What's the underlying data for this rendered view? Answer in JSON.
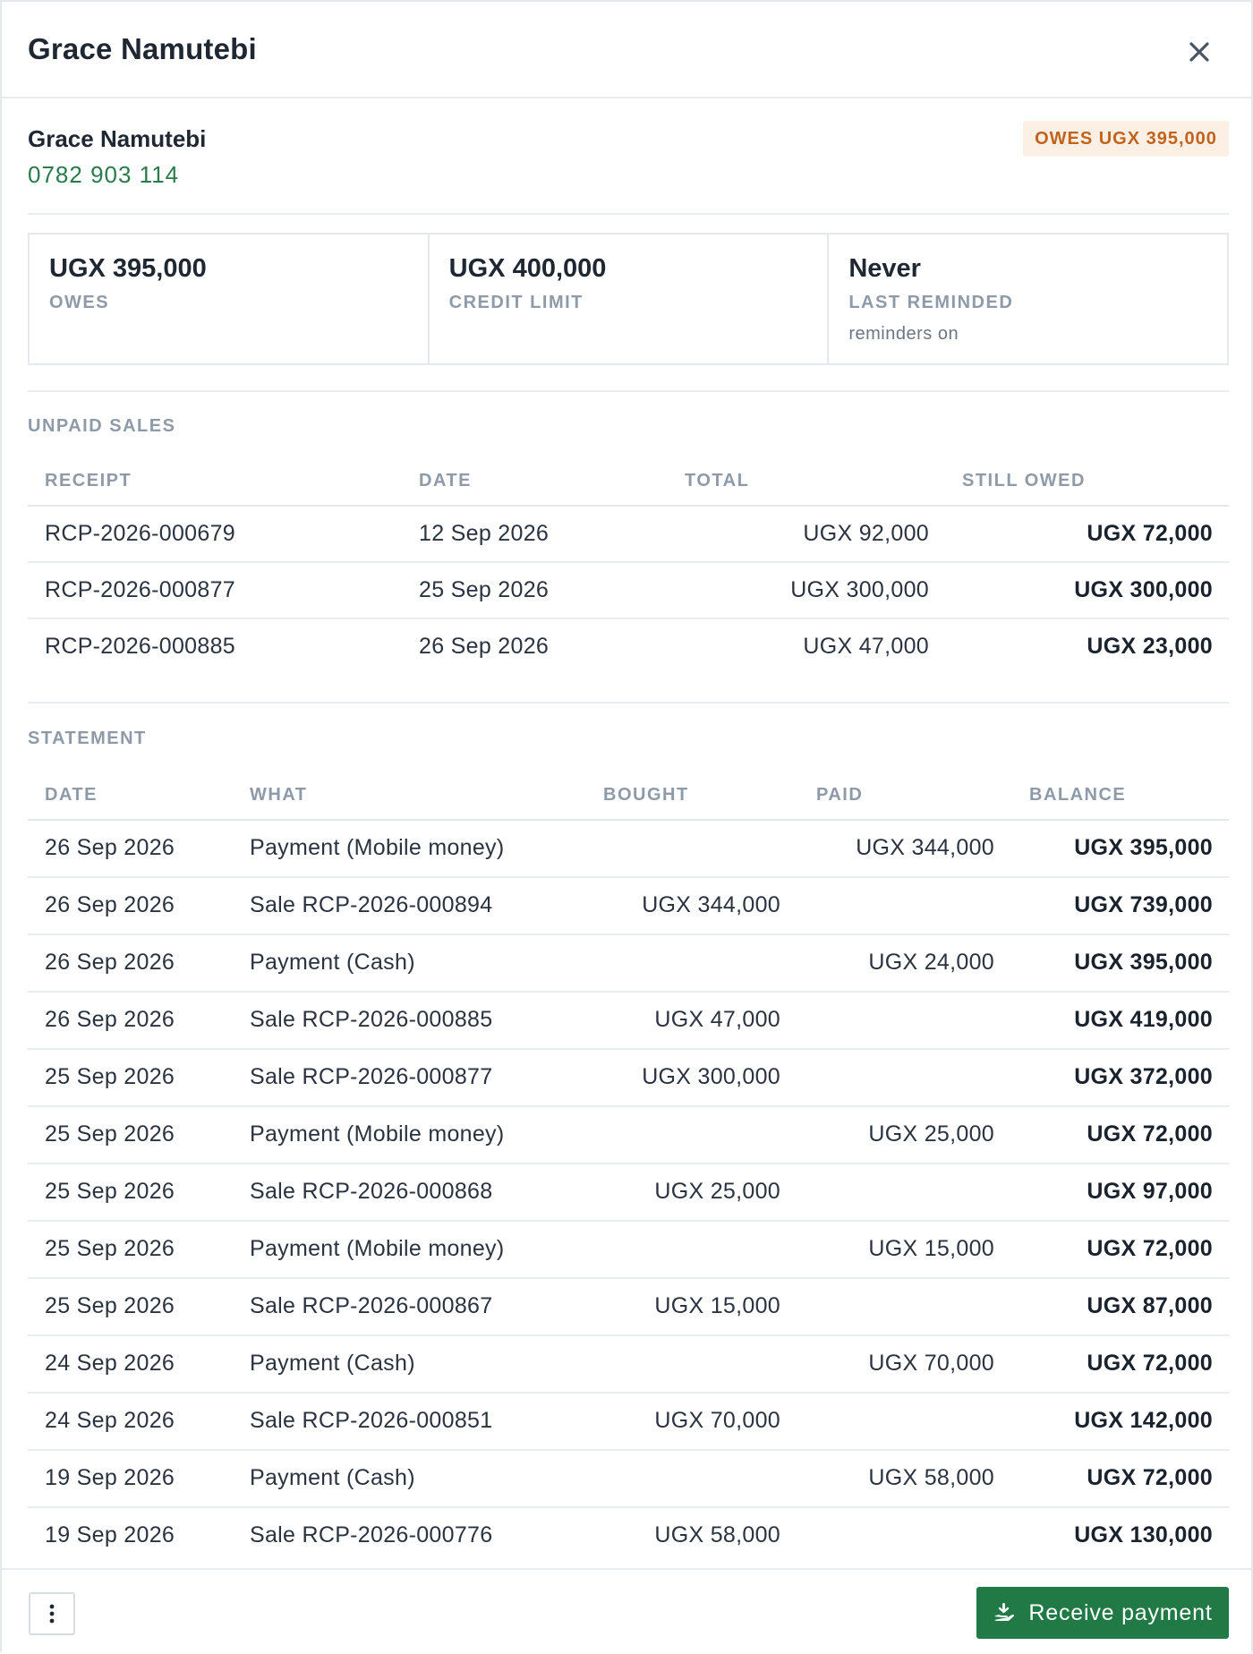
{
  "header": {
    "title": "Grace Namutebi",
    "close_icon": "close-icon"
  },
  "customer": {
    "name": "Grace Namutebi",
    "phone": "0782 903 114",
    "badge": "OWES UGX 395,000",
    "badge_color": "#c1631c"
  },
  "stats": [
    {
      "value": "UGX 395,000",
      "label": "OWES",
      "sub": ""
    },
    {
      "value": "UGX 400,000",
      "label": "CREDIT LIMIT",
      "sub": ""
    },
    {
      "value": "Never",
      "label": "LAST REMINDED",
      "sub": "reminders on"
    }
  ],
  "unpaid": {
    "title": "UNPAID SALES",
    "columns": [
      "RECEIPT",
      "DATE",
      "TOTAL",
      "STILL OWED"
    ],
    "rows": [
      {
        "receipt": "RCP-2026-000679",
        "date": "12 Sep 2026",
        "total": "UGX 92,000",
        "owed": "UGX 72,000"
      },
      {
        "receipt": "RCP-2026-000877",
        "date": "25 Sep 2026",
        "total": "UGX 300,000",
        "owed": "UGX 300,000"
      },
      {
        "receipt": "RCP-2026-000885",
        "date": "26 Sep 2026",
        "total": "UGX 47,000",
        "owed": "UGX 23,000"
      }
    ]
  },
  "statement": {
    "title": "STATEMENT",
    "columns": [
      "DATE",
      "WHAT",
      "BOUGHT",
      "PAID",
      "BALANCE"
    ],
    "rows": [
      {
        "date": "26 Sep 2026",
        "what": "Payment (Mobile money)",
        "bought": "",
        "paid": "UGX 344,000",
        "balance": "UGX 395,000"
      },
      {
        "date": "26 Sep 2026",
        "what": "Sale RCP-2026-000894",
        "bought": "UGX 344,000",
        "paid": "",
        "balance": "UGX 739,000"
      },
      {
        "date": "26 Sep 2026",
        "what": "Payment (Cash)",
        "bought": "",
        "paid": "UGX 24,000",
        "balance": "UGX 395,000"
      },
      {
        "date": "26 Sep 2026",
        "what": "Sale RCP-2026-000885",
        "bought": "UGX 47,000",
        "paid": "",
        "balance": "UGX 419,000"
      },
      {
        "date": "25 Sep 2026",
        "what": "Sale RCP-2026-000877",
        "bought": "UGX 300,000",
        "paid": "",
        "balance": "UGX 372,000"
      },
      {
        "date": "25 Sep 2026",
        "what": "Payment (Mobile money)",
        "bought": "",
        "paid": "UGX 25,000",
        "balance": "UGX 72,000"
      },
      {
        "date": "25 Sep 2026",
        "what": "Sale RCP-2026-000868",
        "bought": "UGX 25,000",
        "paid": "",
        "balance": "UGX 97,000"
      },
      {
        "date": "25 Sep 2026",
        "what": "Payment (Mobile money)",
        "bought": "",
        "paid": "UGX 15,000",
        "balance": "UGX 72,000"
      },
      {
        "date": "25 Sep 2026",
        "what": "Sale RCP-2026-000867",
        "bought": "UGX 15,000",
        "paid": "",
        "balance": "UGX 87,000"
      },
      {
        "date": "24 Sep 2026",
        "what": "Payment (Cash)",
        "bought": "",
        "paid": "UGX 70,000",
        "balance": "UGX 72,000"
      },
      {
        "date": "24 Sep 2026",
        "what": "Sale RCP-2026-000851",
        "bought": "UGX 70,000",
        "paid": "",
        "balance": "UGX 142,000"
      },
      {
        "date": "19 Sep 2026",
        "what": "Payment (Cash)",
        "bought": "",
        "paid": "UGX 58,000",
        "balance": "UGX 72,000"
      },
      {
        "date": "19 Sep 2026",
        "what": "Sale RCP-2026-000776",
        "bought": "UGX 58,000",
        "paid": "",
        "balance": "UGX 130,000"
      }
    ]
  },
  "footer": {
    "more_icon": "more-vertical-icon",
    "receive_icon": "hand-coin-icon",
    "receive_label": "Receive payment",
    "accent_color": "#217a45"
  }
}
